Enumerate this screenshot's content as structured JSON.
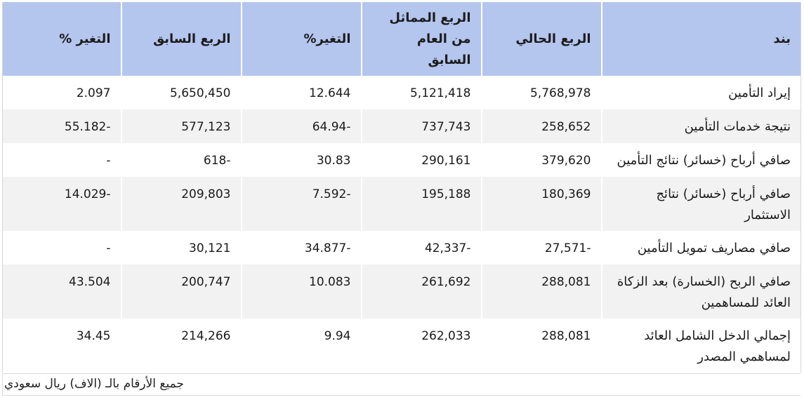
{
  "table": {
    "headers": [
      "بند",
      "الربع الحالي",
      "الربع المماثل من العام السابق",
      "التغير%",
      "الربع السابق",
      "التغير %"
    ],
    "rows": [
      {
        "band": "إيراد التأمين",
        "current": "5,768,978",
        "same_last_year": "5,121,418",
        "change_yoy": "12.644",
        "previous": "5,650,450",
        "change_qoq": "2.097"
      },
      {
        "band": "نتيجة خدمات التأمين",
        "current": "258,652",
        "same_last_year": "737,743",
        "change_yoy": "-64.94",
        "previous": "577,123",
        "change_qoq": "-55.182"
      },
      {
        "band": "صافي أرباح (خسائر) نتائج التأمين",
        "current": "379,620",
        "same_last_year": "290,161",
        "change_yoy": "30.83",
        "previous": "-618",
        "change_qoq": "-"
      },
      {
        "band": "صافي أرباح (خسائر) نتائج الاستثمار",
        "current": "180,369",
        "same_last_year": "195,188",
        "change_yoy": "-7.592",
        "previous": "209,803",
        "change_qoq": "-14.029"
      },
      {
        "band": "صافي مصاريف تمويل التأمين",
        "current": "-27,571",
        "same_last_year": "-42,337",
        "change_yoy": "-34.877",
        "previous": "30,121",
        "change_qoq": "-"
      },
      {
        "band": "صافي الربح (الخسارة) بعد الزكاة العائد للمساهمين",
        "current": "288,081",
        "same_last_year": "261,692",
        "change_yoy": "10.083",
        "previous": "200,747",
        "change_qoq": "43.504"
      },
      {
        "band": "إجمالي الدخل الشامل العائد لمساهمي المصدر",
        "current": "288,081",
        "same_last_year": "262,033",
        "change_yoy": "9.94",
        "previous": "214,266",
        "change_qoq": "34.45"
      }
    ]
  },
  "footnote": "جميع الأرقام بالـ (الاف) ريال سعودي",
  "colors": {
    "header_bg": "#b4c5ee",
    "positive": "#2db84c",
    "negative": "#e53b3b",
    "stripe": "#f2f2f2"
  }
}
